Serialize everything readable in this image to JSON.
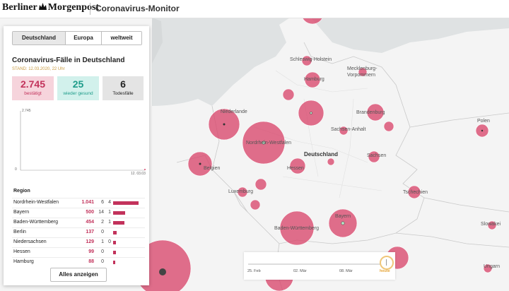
{
  "header": {
    "logo": "Berliner Morgenpost",
    "logo_left": "Berliner",
    "logo_right": "Morgenpost",
    "title": "Coronavirus-Monitor"
  },
  "tabs": [
    {
      "label": "Deutschland",
      "active": true
    },
    {
      "label": "Europa",
      "active": false
    },
    {
      "label": "weltweit",
      "active": false
    }
  ],
  "panel": {
    "title": "Coronavirus-Fälle in Deutschland",
    "stand": "STAND: 12.03.2020, 22 Uhr",
    "stats": {
      "confirmed": {
        "value": "2.745",
        "label": "bestätigt",
        "color": "#c2325b"
      },
      "recovered": {
        "value": "25",
        "label": "wieder gesund",
        "color": "#1e9c8a"
      },
      "deaths": {
        "value": "6",
        "label": "Todesfälle",
        "color": "#222222"
      }
    },
    "region_header": "Region",
    "show_all": "Alles anzeigen"
  },
  "chart_data": {
    "type": "area",
    "y_ticks": [
      "2.745",
      "0"
    ],
    "x_tick": "12. 03.03",
    "ylim": [
      0,
      2745
    ]
  },
  "regions": [
    {
      "name": "Nordrhein-Westfalen",
      "confirmed": "1.041",
      "recovered": "6",
      "deaths": "4",
      "share": 1.0
    },
    {
      "name": "Bayern",
      "confirmed": "500",
      "recovered": "14",
      "deaths": "1",
      "share": 0.48
    },
    {
      "name": "Baden-Württemberg",
      "confirmed": "454",
      "recovered": "2",
      "deaths": "1",
      "share": 0.44
    },
    {
      "name": "Berlin",
      "confirmed": "137",
      "recovered": "0",
      "deaths": "",
      "share": 0.13
    },
    {
      "name": "Niedersachsen",
      "confirmed": "129",
      "recovered": "1",
      "deaths": "0",
      "share": 0.12
    },
    {
      "name": "Hessen",
      "confirmed": "99",
      "recovered": "0",
      "deaths": "",
      "share": 0.1
    },
    {
      "name": "Hamburg",
      "confirmed": "88",
      "recovered": "0",
      "deaths": "",
      "share": 0.08
    }
  ],
  "map_labels": {
    "schleswig": "Schleswig-Holstein",
    "hamburg": "Hamburg",
    "mecklenburg": "Mecklenburg-",
    "vorpommern": "Vorpommern",
    "niederlande": "Niederlande",
    "brandenburg": "Brandenburg",
    "polen": "Polen",
    "sachsen_anhalt": "Sachsen-Anhalt",
    "nrw": "Nordrhein-Westfalen",
    "deutschland": "Deutschland",
    "hessen": "Hessen",
    "sachsen": "Sachsen",
    "belgien": "Belgien",
    "luxemburg": "Luxemburg",
    "tschechien": "Tschechien",
    "bw": "Baden-Württemberg",
    "bayern": "Bayern",
    "slowakei": "Slowakei",
    "ungarn": "Ungarn"
  },
  "timeline": {
    "labels": [
      "25. Feb",
      "02. Mär",
      "08. Mär"
    ],
    "today": "heute"
  },
  "colors": {
    "bubble": "#d9466b",
    "accent": "#c2325b",
    "stand": "#c89a40",
    "today": "#e6a63a"
  }
}
